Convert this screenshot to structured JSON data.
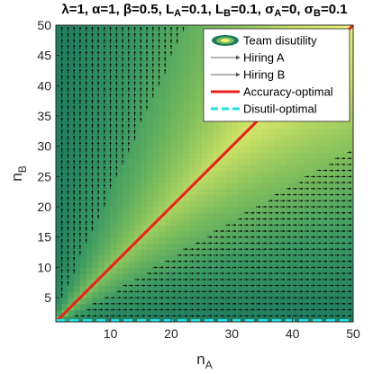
{
  "chart_data": {
    "type": "heatmap",
    "title": "λ=1, α=1, β=0.5, L_A=0.1, L_B=0.1, σ_A=0, σ_B=0.1",
    "title_parts": [
      {
        "t": "λ=1, α=1, β=0.5, L"
      },
      {
        "t": "A",
        "sub": true
      },
      {
        "t": "=0.1, L"
      },
      {
        "t": "B",
        "sub": true
      },
      {
        "t": "=0.1, σ"
      },
      {
        "t": "A",
        "sub": true
      },
      {
        "t": "=0, σ"
      },
      {
        "t": "B",
        "sub": true
      },
      {
        "t": "=0.1"
      }
    ],
    "xlabel": "n",
    "xlabel_sub": "A",
    "ylabel": "n",
    "ylabel_sub": "B",
    "xlim": [
      1,
      50
    ],
    "ylim": [
      1,
      50
    ],
    "xticks": [
      10,
      20,
      30,
      40,
      50
    ],
    "yticks": [
      5,
      10,
      15,
      20,
      25,
      30,
      35,
      40,
      45,
      50
    ],
    "colormap": [
      "#1e7a5f",
      "#3a9a63",
      "#7dbd5c",
      "#c6de64",
      "#f0f27a"
    ],
    "legend": {
      "position": "top-right",
      "entries": [
        {
          "label": "Team disutility",
          "kind": "contour"
        },
        {
          "label": "Hiring A",
          "kind": "arrow",
          "color": "#666666"
        },
        {
          "label": "Hiring B",
          "kind": "arrow",
          "color": "#666666"
        },
        {
          "label": "Accuracy-optimal",
          "kind": "line",
          "color": "#e8201a"
        },
        {
          "label": "Disutil-optimal",
          "kind": "dashed",
          "color": "#22e0e6"
        }
      ]
    },
    "series": [
      {
        "name": "Accuracy-optimal",
        "x": [
          1,
          50
        ],
        "y": [
          1,
          50
        ]
      },
      {
        "name": "Disutil-optimal",
        "x": [
          1,
          50
        ],
        "y": [
          1,
          1
        ]
      }
    ],
    "quiver_regions": {
      "hiring_b_region": "n_B > 2.2 * n_A (upper-left wedge, arrows point up)",
      "hiring_a_region": "n_B < 0.6 * n_A (lower-right wedge, arrows point right)"
    }
  }
}
